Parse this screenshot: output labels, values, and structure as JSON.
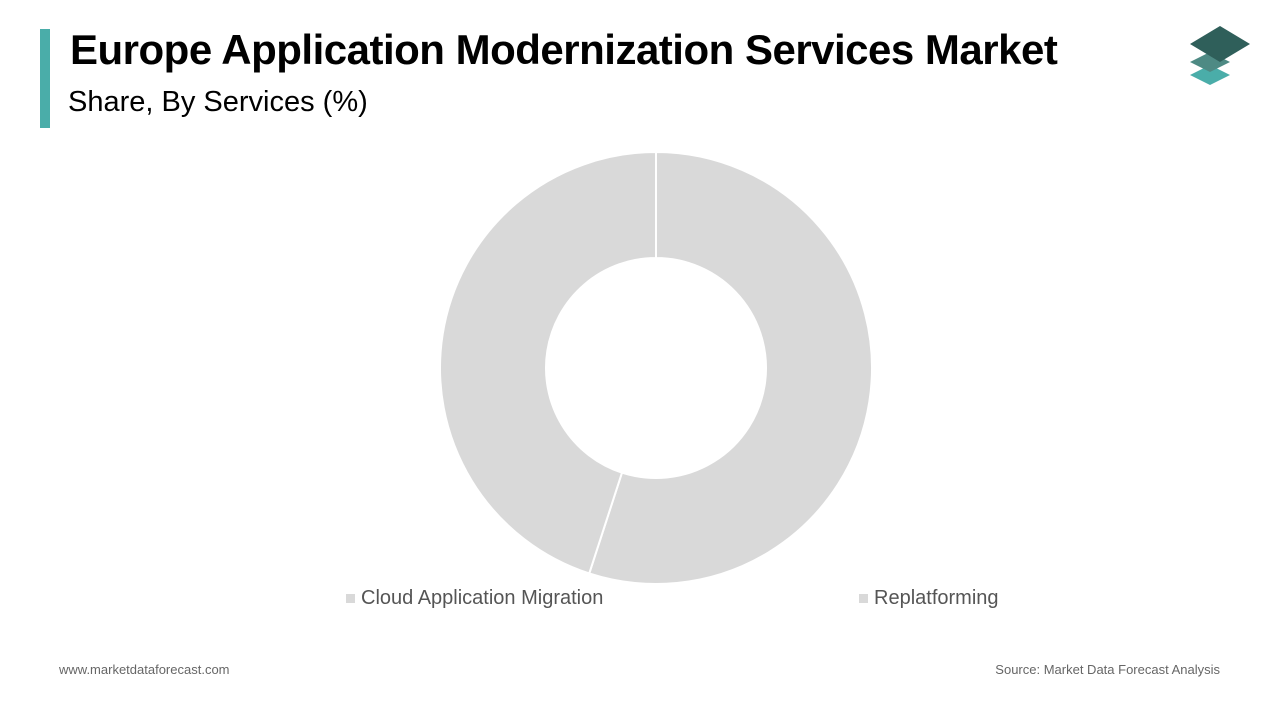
{
  "header": {
    "title": "Europe Application Modernization Services Market",
    "subtitle": "Share, By Services (%)"
  },
  "colors": {
    "accent": "#4aada9",
    "slice": "#d9d9d9",
    "logo_dark": "#2f5f5a",
    "logo_mid": "#4e8a84",
    "logo_light": "#4aada9"
  },
  "chart_data": {
    "type": "pie",
    "variant": "donut",
    "title": "Share, By Services (%)",
    "categories": [
      "Cloud Application Migration",
      "Replatforming"
    ],
    "values": [
      55,
      45
    ],
    "legend_position": "bottom"
  },
  "footer": {
    "website": "www.marketdataforecast.com",
    "source": "Source: Market Data Forecast Analysis"
  }
}
